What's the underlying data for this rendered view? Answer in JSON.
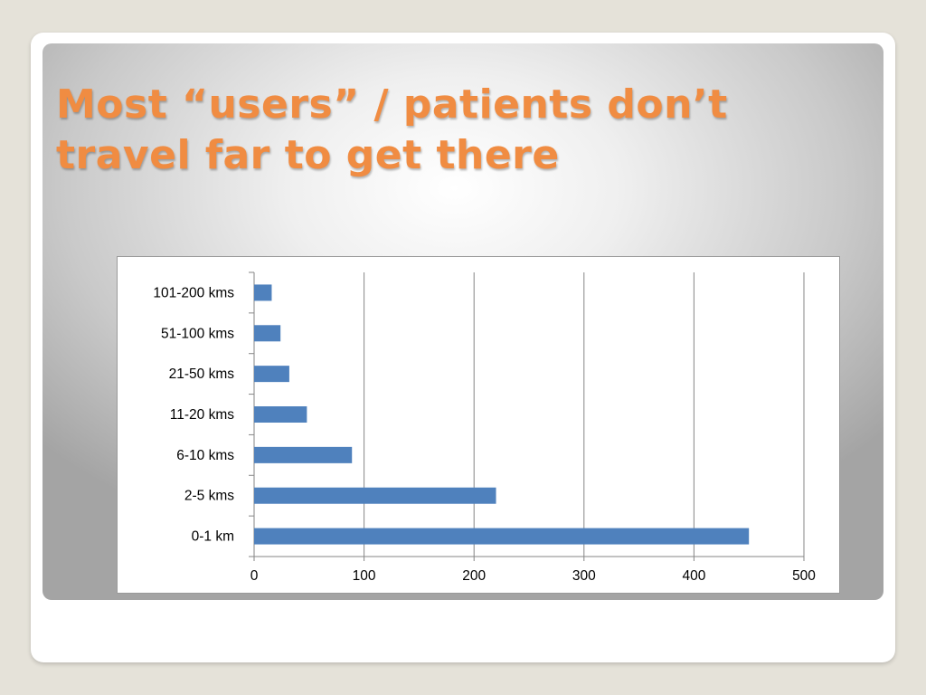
{
  "slide": {
    "title_line1": "Most “users” / patients don’t",
    "title_line2": "travel far to get there"
  },
  "colors": {
    "title": "#f08c42",
    "bar": "#4f81bd",
    "grid": "#868686",
    "background": "#e5e2d9"
  },
  "chart_data": {
    "type": "bar",
    "orientation": "horizontal",
    "title": "",
    "xlabel": "",
    "ylabel": "",
    "categories": [
      "101-200 kms",
      "51-100 kms",
      "21-50 kms",
      "11-20 kms",
      "6-10 kms",
      "2-5 kms",
      "0-1 km"
    ],
    "values": [
      16,
      24,
      32,
      48,
      89,
      220,
      450
    ],
    "xlim": [
      0,
      500
    ],
    "xticks": [
      "0",
      "100",
      "200",
      "300",
      "400",
      "500"
    ],
    "grid": "vertical major gridlines",
    "legend": "none"
  }
}
